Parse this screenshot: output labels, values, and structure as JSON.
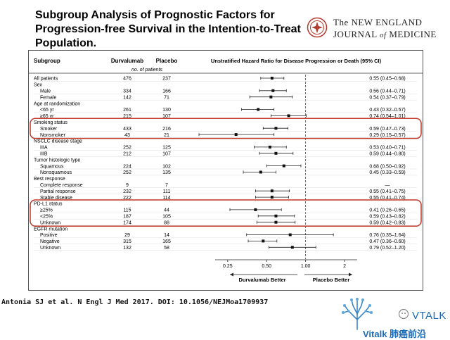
{
  "title": {
    "line1": "Subgroup Analysis of Prognostic Factors for",
    "line2": "Progression-free Survival in the Intention-to-Treat",
    "line3": "Population."
  },
  "logo": {
    "line1": "The NEW ENGLAND",
    "line2_a": "JOURNAL",
    "line2_of": "of",
    "line2_b": "MEDICINE"
  },
  "table": {
    "col_subgroup": "Subgroup",
    "col_durva": "Durvalumab",
    "col_placebo": "Placebo",
    "col_unit": "no. of patients",
    "col_hr": "Unstratified Hazard Ratio for Disease Progression or Death (95% CI)"
  },
  "chart_data": {
    "type": "forest",
    "x_scale": "log",
    "xlim": [
      0.2,
      2.6
    ],
    "x_ticks": [
      "0.25",
      "0.50",
      "1.00",
      "2"
    ],
    "reference_line": 1.0,
    "xlabel_left": "Durvalumab Better",
    "xlabel_right": "Placebo Better",
    "rows": [
      {
        "label": "All patients",
        "indent": 0,
        "durva": "476",
        "placebo": "237",
        "hr": 0.55,
        "lo": 0.45,
        "hi": 0.68,
        "hr_text": "0.55 (0.45–0.68)"
      },
      {
        "label": "Sex",
        "indent": 0,
        "header": true
      },
      {
        "label": "Male",
        "indent": 1,
        "durva": "334",
        "placebo": "166",
        "hr": 0.56,
        "lo": 0.44,
        "hi": 0.71,
        "hr_text": "0.56 (0.44–0.71)"
      },
      {
        "label": "Female",
        "indent": 1,
        "durva": "142",
        "placebo": "71",
        "hr": 0.54,
        "lo": 0.37,
        "hi": 0.79,
        "hr_text": "0.54 (0.37–0.79)"
      },
      {
        "label": "Age at randomization",
        "indent": 0,
        "header": true
      },
      {
        "label": "<65 yr",
        "indent": 1,
        "durva": "261",
        "placebo": "130",
        "hr": 0.43,
        "lo": 0.32,
        "hi": 0.57,
        "hr_text": "0.43 (0.32–0.57)"
      },
      {
        "label": "≥65 yr",
        "indent": 1,
        "durva": "215",
        "placebo": "107",
        "hr": 0.74,
        "lo": 0.54,
        "hi": 1.01,
        "hr_text": "0.74 (0.54–1.01)"
      },
      {
        "label": "Smoking status",
        "indent": 0,
        "header": true
      },
      {
        "label": "Smoker",
        "indent": 1,
        "durva": "433",
        "placebo": "216",
        "hr": 0.59,
        "lo": 0.47,
        "hi": 0.73,
        "hr_text": "0.59 (0.47–0.73)"
      },
      {
        "label": "Nonsmoker",
        "indent": 1,
        "durva": "43",
        "placebo": "21",
        "hr": 0.29,
        "lo": 0.15,
        "hi": 0.57,
        "hr_text": "0.29 (0.15–0.57)"
      },
      {
        "label": "NSCLC disease stage",
        "indent": 0,
        "header": true
      },
      {
        "label": "IIIA",
        "indent": 1,
        "durva": "252",
        "placebo": "125",
        "hr": 0.53,
        "lo": 0.4,
        "hi": 0.71,
        "hr_text": "0.53 (0.40–0.71)"
      },
      {
        "label": "IIIB",
        "indent": 1,
        "durva": "212",
        "placebo": "107",
        "hr": 0.59,
        "lo": 0.44,
        "hi": 0.8,
        "hr_text": "0.59 (0.44–0.80)"
      },
      {
        "label": "Tumor histologic type",
        "indent": 0,
        "header": true
      },
      {
        "label": "Squamous",
        "indent": 1,
        "durva": "224",
        "placebo": "102",
        "hr": 0.68,
        "lo": 0.5,
        "hi": 0.92,
        "hr_text": "0.68 (0.50–0.92)"
      },
      {
        "label": "Nonsquamous",
        "indent": 1,
        "durva": "252",
        "placebo": "135",
        "hr": 0.45,
        "lo": 0.33,
        "hi": 0.59,
        "hr_text": "0.45 (0.33–0.59)"
      },
      {
        "label": "Best response",
        "indent": 0,
        "header": true
      },
      {
        "label": "Complete response",
        "indent": 1,
        "durva": "9",
        "placebo": "7",
        "hr_text": "—"
      },
      {
        "label": "Partial response",
        "indent": 1,
        "durva": "232",
        "placebo": "111",
        "hr": 0.55,
        "lo": 0.41,
        "hi": 0.75,
        "hr_text": "0.55 (0.41–0.75)"
      },
      {
        "label": "Stable disease",
        "indent": 1,
        "durva": "222",
        "placebo": "114",
        "hr": 0.55,
        "lo": 0.41,
        "hi": 0.74,
        "hr_text": "0.55 (0.41–0.74)"
      },
      {
        "label": "PD-L1 status",
        "indent": 0,
        "header": true
      },
      {
        "label": "≥25%",
        "indent": 1,
        "durva": "115",
        "placebo": "44",
        "hr": 0.41,
        "lo": 0.26,
        "hi": 0.65,
        "hr_text": "0.41 (0.26–0.65)"
      },
      {
        "label": "<25%",
        "indent": 1,
        "durva": "187",
        "placebo": "105",
        "hr": 0.59,
        "lo": 0.43,
        "hi": 0.82,
        "hr_text": "0.59 (0.43–0.82)"
      },
      {
        "label": "Unknown",
        "indent": 1,
        "durva": "174",
        "placebo": "88",
        "hr": 0.59,
        "lo": 0.42,
        "hi": 0.83,
        "hr_text": "0.59 (0.42–0.83)"
      },
      {
        "label": "EGFR mutation",
        "indent": 0,
        "header": true
      },
      {
        "label": "Positive",
        "indent": 1,
        "durva": "29",
        "placebo": "14",
        "hr": 0.76,
        "lo": 0.35,
        "hi": 1.64,
        "hr_text": "0.76 (0.35–1.64)"
      },
      {
        "label": "Negative",
        "indent": 1,
        "durva": "315",
        "placebo": "165",
        "hr": 0.47,
        "lo": 0.36,
        "hi": 0.6,
        "hr_text": "0.47 (0.36–0.60)"
      },
      {
        "label": "Unknown",
        "indent": 1,
        "durva": "132",
        "placebo": "58",
        "hr": 0.79,
        "lo": 0.52,
        "hi": 1.2,
        "hr_text": "0.79 (0.52–1.20)"
      }
    ],
    "highlight_groups": [
      "Smoking status",
      "PD-L1 status"
    ],
    "highlight_color": "#c0392b"
  },
  "citation": "Antonia SJ et al. N Engl J Med 2017. DOI: 10.1056/NEJMoa1709937",
  "brand": {
    "name": "VTALK",
    "sub": "Vitalk 肺癌前沿",
    "color": "#1b6bb8"
  }
}
